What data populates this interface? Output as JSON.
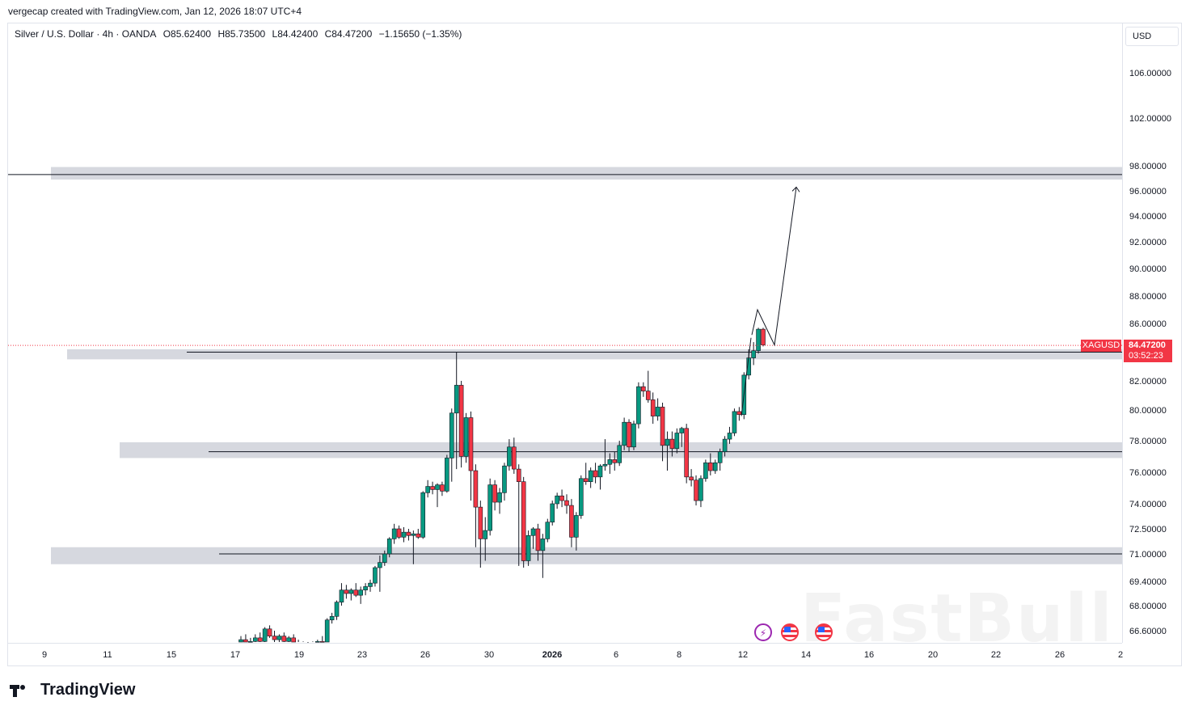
{
  "caption": "vergecap created with TradingView.com, Jan 12, 2026 18:07 UTC+4",
  "legend": {
    "instrument": "Silver / U.S. Dollar · 4h · OANDA",
    "open": "O85.62400",
    "high": "H85.73500",
    "low": "L84.42400",
    "close": "C84.47200",
    "change": "−1.15650 (−1.35%)"
  },
  "currency_button": "USD",
  "price_badge": {
    "symbol": "XAGUSD",
    "price": "84.47200",
    "countdown": "03:52:23",
    "color": "#f23645"
  },
  "brand": "TradingView",
  "watermark": "FastBull",
  "event_icons": [
    "lightning-icon",
    "us-flag-icon",
    "us-flag-icon"
  ],
  "chart_data": {
    "type": "candlestick",
    "timeframe": "4h",
    "y_axis_labels": [
      "106.00000",
      "102.00000",
      "98.00000",
      "96.00000",
      "94.00000",
      "92.00000",
      "90.00000",
      "88.00000",
      "86.00000",
      "82.00000",
      "80.00000",
      "78.00000",
      "76.00000",
      "74.00000",
      "72.50000",
      "71.00000",
      "69.40000",
      "68.00000",
      "66.60000"
    ],
    "x_axis_labels": [
      "9",
      "11",
      "15",
      "17",
      "19",
      "23",
      "26",
      "30",
      "2026",
      "6",
      "8",
      "12",
      "14",
      "16",
      "20",
      "22",
      "26",
      "2"
    ],
    "last_price": 84.472,
    "zones": [
      {
        "from": 96.9,
        "to": 97.9,
        "line": 97.3
      },
      {
        "from": 83.5,
        "to": 84.2,
        "line": 84.0
      },
      {
        "from": 76.9,
        "to": 77.9,
        "line": 77.3
      },
      {
        "from": 70.4,
        "to": 71.4,
        "line": 71.0
      }
    ],
    "projection_path": [
      85.2,
      87.0,
      84.5,
      96.3
    ],
    "colors": {
      "up": "#089981",
      "down": "#f23645",
      "zone": "#d1d4dc",
      "line": "#131722"
    },
    "candles": [
      {
        "o": 65.8,
        "h": 66.3,
        "l": 65.6,
        "c": 66.1
      },
      {
        "o": 66.1,
        "h": 66.4,
        "l": 65.8,
        "c": 65.9
      },
      {
        "o": 65.9,
        "h": 66.2,
        "l": 65.7,
        "c": 66.0
      },
      {
        "o": 66.0,
        "h": 66.4,
        "l": 65.9,
        "c": 66.2
      },
      {
        "o": 66.2,
        "h": 66.5,
        "l": 65.9,
        "c": 66.0
      },
      {
        "o": 66.0,
        "h": 66.8,
        "l": 65.9,
        "c": 66.7
      },
      {
        "o": 66.7,
        "h": 66.9,
        "l": 66.2,
        "c": 66.3
      },
      {
        "o": 66.3,
        "h": 66.6,
        "l": 65.9,
        "c": 66.1
      },
      {
        "o": 66.1,
        "h": 66.4,
        "l": 65.8,
        "c": 66.3
      },
      {
        "o": 66.3,
        "h": 66.5,
        "l": 65.9,
        "c": 66.0
      },
      {
        "o": 66.0,
        "h": 66.3,
        "l": 65.8,
        "c": 66.2
      },
      {
        "o": 66.2,
        "h": 66.4,
        "l": 65.8,
        "c": 65.9
      },
      {
        "o": 65.9,
        "h": 66.1,
        "l": 65.6,
        "c": 65.8
      },
      {
        "o": 65.8,
        "h": 66.0,
        "l": 65.5,
        "c": 65.7
      },
      {
        "o": 65.7,
        "h": 65.9,
        "l": 65.4,
        "c": 65.8
      },
      {
        "o": 65.8,
        "h": 66.0,
        "l": 65.5,
        "c": 65.9
      },
      {
        "o": 65.9,
        "h": 66.1,
        "l": 65.6,
        "c": 66.0
      },
      {
        "o": 66.0,
        "h": 66.3,
        "l": 65.7,
        "c": 65.8
      },
      {
        "o": 65.8,
        "h": 67.3,
        "l": 65.7,
        "c": 67.2
      },
      {
        "o": 67.2,
        "h": 67.6,
        "l": 67.0,
        "c": 67.4
      },
      {
        "o": 67.4,
        "h": 68.3,
        "l": 67.2,
        "c": 68.2
      },
      {
        "o": 68.2,
        "h": 69.3,
        "l": 68.0,
        "c": 68.9
      },
      {
        "o": 68.9,
        "h": 69.2,
        "l": 68.4,
        "c": 68.7
      },
      {
        "o": 68.7,
        "h": 69.0,
        "l": 68.3,
        "c": 68.9
      },
      {
        "o": 68.9,
        "h": 69.3,
        "l": 68.5,
        "c": 68.6
      },
      {
        "o": 68.6,
        "h": 69.1,
        "l": 68.1,
        "c": 68.9
      },
      {
        "o": 68.9,
        "h": 69.3,
        "l": 68.6,
        "c": 69.1
      },
      {
        "o": 69.1,
        "h": 69.5,
        "l": 68.8,
        "c": 69.3
      },
      {
        "o": 69.3,
        "h": 70.3,
        "l": 69.1,
        "c": 70.2
      },
      {
        "o": 70.2,
        "h": 70.9,
        "l": 68.8,
        "c": 70.5
      },
      {
        "o": 70.5,
        "h": 71.2,
        "l": 70.3,
        "c": 71.0
      },
      {
        "o": 71.0,
        "h": 72.0,
        "l": 70.8,
        "c": 71.9
      },
      {
        "o": 71.9,
        "h": 72.8,
        "l": 71.6,
        "c": 72.5
      },
      {
        "o": 72.5,
        "h": 72.7,
        "l": 71.9,
        "c": 72.0
      },
      {
        "o": 72.0,
        "h": 72.6,
        "l": 71.7,
        "c": 72.3
      },
      {
        "o": 72.3,
        "h": 72.5,
        "l": 71.8,
        "c": 72.1
      },
      {
        "o": 72.1,
        "h": 72.4,
        "l": 70.4,
        "c": 72.2
      },
      {
        "o": 72.2,
        "h": 72.5,
        "l": 71.9,
        "c": 72.0
      },
      {
        "o": 72.0,
        "h": 74.8,
        "l": 71.9,
        "c": 74.7
      },
      {
        "o": 74.7,
        "h": 75.5,
        "l": 74.4,
        "c": 75.1
      },
      {
        "o": 75.1,
        "h": 75.4,
        "l": 74.6,
        "c": 74.9
      },
      {
        "o": 74.9,
        "h": 75.3,
        "l": 73.8,
        "c": 75.2
      },
      {
        "o": 75.2,
        "h": 75.4,
        "l": 74.5,
        "c": 74.8
      },
      {
        "o": 74.8,
        "h": 77.1,
        "l": 74.7,
        "c": 76.9
      },
      {
        "o": 76.9,
        "h": 80.1,
        "l": 75.4,
        "c": 79.8
      },
      {
        "o": 79.8,
        "h": 84.0,
        "l": 76.2,
        "c": 81.7
      },
      {
        "o": 81.7,
        "h": 82.0,
        "l": 76.3,
        "c": 77.0
      },
      {
        "o": 77.0,
        "h": 79.8,
        "l": 76.6,
        "c": 79.5
      },
      {
        "o": 79.5,
        "h": 79.9,
        "l": 74.2,
        "c": 76.1
      },
      {
        "o": 76.1,
        "h": 76.5,
        "l": 71.4,
        "c": 73.8
      },
      {
        "o": 73.8,
        "h": 74.2,
        "l": 70.2,
        "c": 71.9
      },
      {
        "o": 71.9,
        "h": 73.2,
        "l": 70.6,
        "c": 72.4
      },
      {
        "o": 72.4,
        "h": 75.6,
        "l": 72.1,
        "c": 75.2
      },
      {
        "o": 75.2,
        "h": 75.5,
        "l": 73.6,
        "c": 74.1
      },
      {
        "o": 74.1,
        "h": 75.0,
        "l": 73.4,
        "c": 74.7
      },
      {
        "o": 74.7,
        "h": 76.6,
        "l": 74.2,
        "c": 76.4
      },
      {
        "o": 76.4,
        "h": 78.1,
        "l": 76.1,
        "c": 77.6
      },
      {
        "o": 77.6,
        "h": 78.2,
        "l": 75.9,
        "c": 76.2
      },
      {
        "o": 76.2,
        "h": 76.5,
        "l": 70.3,
        "c": 75.4
      },
      {
        "o": 75.4,
        "h": 75.7,
        "l": 70.2,
        "c": 70.6
      },
      {
        "o": 70.6,
        "h": 72.4,
        "l": 70.3,
        "c": 72.1
      },
      {
        "o": 72.1,
        "h": 72.6,
        "l": 71.3,
        "c": 72.5
      },
      {
        "o": 72.5,
        "h": 72.8,
        "l": 70.6,
        "c": 71.2
      },
      {
        "o": 71.2,
        "h": 72.2,
        "l": 69.6,
        "c": 71.9
      },
      {
        "o": 71.9,
        "h": 73.1,
        "l": 71.7,
        "c": 72.9
      },
      {
        "o": 72.9,
        "h": 74.2,
        "l": 72.7,
        "c": 74.0
      },
      {
        "o": 74.0,
        "h": 74.7,
        "l": 73.7,
        "c": 74.5
      },
      {
        "o": 74.5,
        "h": 74.9,
        "l": 73.8,
        "c": 74.2
      },
      {
        "o": 74.2,
        "h": 74.6,
        "l": 73.4,
        "c": 73.9
      },
      {
        "o": 73.9,
        "h": 74.3,
        "l": 71.4,
        "c": 72.0
      },
      {
        "o": 72.0,
        "h": 73.5,
        "l": 71.2,
        "c": 73.3
      },
      {
        "o": 73.3,
        "h": 75.8,
        "l": 73.1,
        "c": 75.6
      },
      {
        "o": 75.6,
        "h": 76.6,
        "l": 75.2,
        "c": 75.4
      },
      {
        "o": 75.4,
        "h": 76.3,
        "l": 75.0,
        "c": 76.1
      },
      {
        "o": 76.1,
        "h": 76.6,
        "l": 75.3,
        "c": 75.7
      },
      {
        "o": 75.7,
        "h": 76.5,
        "l": 74.9,
        "c": 76.4
      },
      {
        "o": 76.4,
        "h": 78.1,
        "l": 76.1,
        "c": 76.5
      },
      {
        "o": 76.5,
        "h": 77.2,
        "l": 75.9,
        "c": 76.8
      },
      {
        "o": 76.8,
        "h": 77.3,
        "l": 76.1,
        "c": 76.6
      },
      {
        "o": 76.6,
        "h": 78.0,
        "l": 76.4,
        "c": 77.7
      },
      {
        "o": 77.7,
        "h": 79.5,
        "l": 77.4,
        "c": 79.2
      },
      {
        "o": 79.2,
        "h": 79.4,
        "l": 77.3,
        "c": 77.6
      },
      {
        "o": 77.6,
        "h": 79.3,
        "l": 77.4,
        "c": 79.1
      },
      {
        "o": 79.1,
        "h": 81.9,
        "l": 78.8,
        "c": 81.6
      },
      {
        "o": 81.6,
        "h": 81.9,
        "l": 80.9,
        "c": 81.3
      },
      {
        "o": 81.3,
        "h": 82.7,
        "l": 80.5,
        "c": 80.7
      },
      {
        "o": 80.7,
        "h": 81.2,
        "l": 79.1,
        "c": 79.6
      },
      {
        "o": 79.6,
        "h": 80.8,
        "l": 79.3,
        "c": 80.2
      },
      {
        "o": 80.2,
        "h": 80.5,
        "l": 76.7,
        "c": 77.7
      },
      {
        "o": 77.7,
        "h": 78.6,
        "l": 76.1,
        "c": 78.1
      },
      {
        "o": 78.1,
        "h": 78.6,
        "l": 77.0,
        "c": 77.5
      },
      {
        "o": 77.5,
        "h": 78.8,
        "l": 77.2,
        "c": 78.5
      },
      {
        "o": 78.5,
        "h": 78.9,
        "l": 77.6,
        "c": 78.8
      },
      {
        "o": 78.8,
        "h": 79.1,
        "l": 75.3,
        "c": 75.7
      },
      {
        "o": 75.7,
        "h": 76.2,
        "l": 75.1,
        "c": 75.5
      },
      {
        "o": 75.5,
        "h": 75.8,
        "l": 73.9,
        "c": 74.2
      },
      {
        "o": 74.2,
        "h": 75.8,
        "l": 73.8,
        "c": 75.6
      },
      {
        "o": 75.6,
        "h": 76.8,
        "l": 75.4,
        "c": 76.6
      },
      {
        "o": 76.6,
        "h": 77.2,
        "l": 75.8,
        "c": 76.1
      },
      {
        "o": 76.1,
        "h": 76.8,
        "l": 75.9,
        "c": 76.6
      },
      {
        "o": 76.6,
        "h": 77.5,
        "l": 76.1,
        "c": 77.3
      },
      {
        "o": 77.3,
        "h": 78.3,
        "l": 77.0,
        "c": 78.1
      },
      {
        "o": 78.1,
        "h": 78.9,
        "l": 77.8,
        "c": 78.5
      },
      {
        "o": 78.5,
        "h": 80.1,
        "l": 78.3,
        "c": 79.9
      },
      {
        "o": 79.9,
        "h": 80.2,
        "l": 79.3,
        "c": 79.7
      },
      {
        "o": 79.7,
        "h": 82.6,
        "l": 79.4,
        "c": 82.4
      },
      {
        "o": 82.4,
        "h": 84.2,
        "l": 82.1,
        "c": 83.6
      },
      {
        "o": 83.6,
        "h": 84.7,
        "l": 83.1,
        "c": 84.1
      },
      {
        "o": 84.1,
        "h": 85.7,
        "l": 83.9,
        "c": 85.6
      },
      {
        "o": 85.6,
        "h": 85.7,
        "l": 84.4,
        "c": 84.5
      }
    ]
  }
}
